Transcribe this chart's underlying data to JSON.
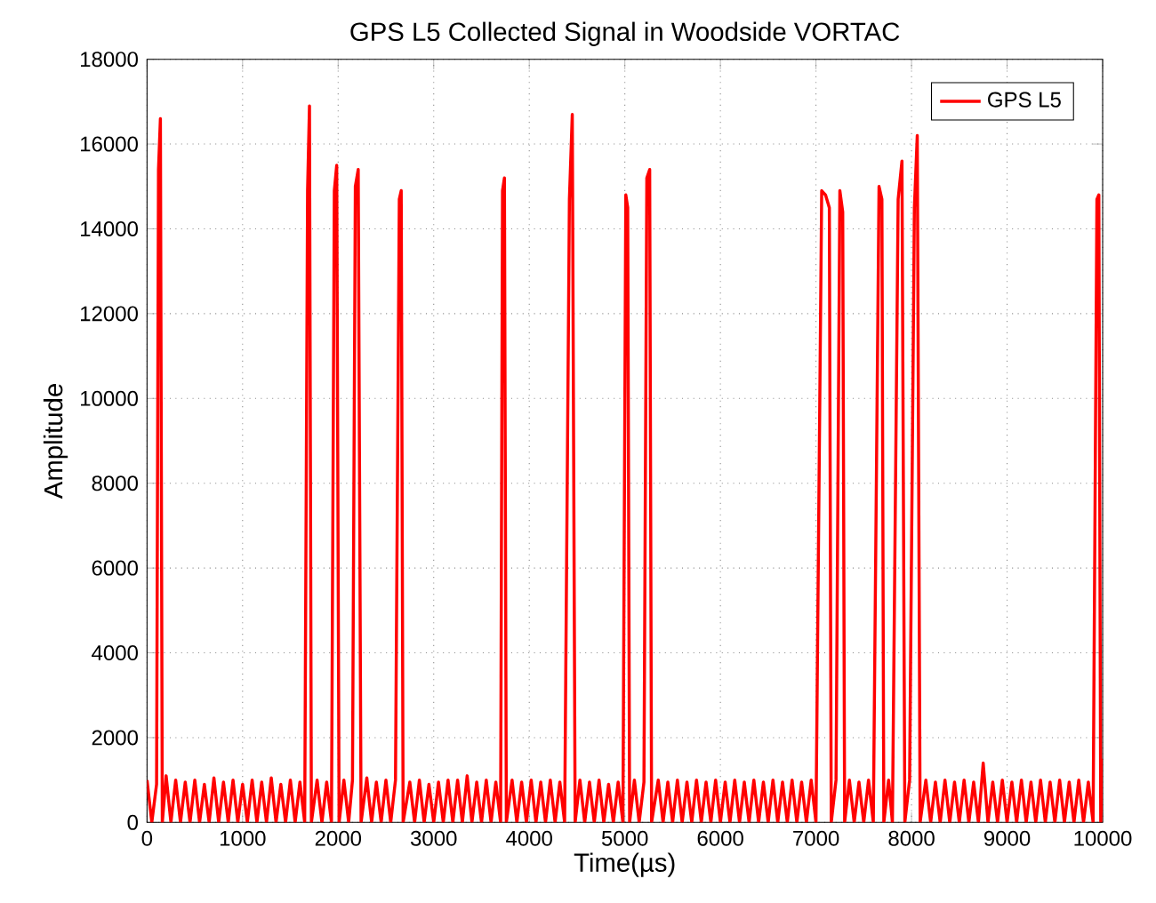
{
  "chart_data": {
    "type": "line",
    "title": "GPS L5 Collected Signal in Woodside VORTAC",
    "xlabel": "Time(µs)",
    "ylabel": "Amplitude",
    "xlim": [
      0,
      10000
    ],
    "ylim": [
      0,
      18000
    ],
    "xticks": [
      0,
      1000,
      2000,
      3000,
      4000,
      5000,
      6000,
      7000,
      8000,
      9000,
      10000
    ],
    "yticks": [
      0,
      2000,
      4000,
      6000,
      8000,
      10000,
      12000,
      14000,
      16000,
      18000
    ],
    "grid": true,
    "legend": "top right",
    "line_style": "solid",
    "series": [
      {
        "name": "GPS L5",
        "color": "#ff0000",
        "x": [
          0,
          50,
          100,
          120,
          140,
          160,
          200,
          250,
          300,
          350,
          400,
          450,
          500,
          550,
          600,
          650,
          700,
          750,
          800,
          850,
          900,
          950,
          1000,
          1050,
          1100,
          1150,
          1200,
          1250,
          1300,
          1350,
          1400,
          1450,
          1500,
          1550,
          1600,
          1650,
          1680,
          1700,
          1720,
          1780,
          1830,
          1880,
          1930,
          1960,
          1985,
          2010,
          2060,
          2110,
          2150,
          2180,
          2210,
          2240,
          2300,
          2350,
          2400,
          2450,
          2500,
          2550,
          2600,
          2640,
          2660,
          2680,
          2750,
          2800,
          2850,
          2900,
          2950,
          3000,
          3050,
          3100,
          3150,
          3200,
          3250,
          3300,
          3350,
          3400,
          3450,
          3500,
          3550,
          3600,
          3650,
          3700,
          3720,
          3740,
          3760,
          3820,
          3870,
          3920,
          3970,
          4020,
          4070,
          4120,
          4170,
          4220,
          4270,
          4320,
          4370,
          4420,
          4450,
          4480,
          4530,
          4580,
          4630,
          4680,
          4730,
          4780,
          4830,
          4880,
          4930,
          4980,
          5010,
          5030,
          5050,
          5100,
          5150,
          5200,
          5230,
          5260,
          5280,
          5350,
          5400,
          5450,
          5500,
          5550,
          5600,
          5650,
          5700,
          5750,
          5800,
          5850,
          5900,
          5950,
          6000,
          6050,
          6100,
          6150,
          6200,
          6250,
          6300,
          6350,
          6400,
          6450,
          6500,
          6550,
          6600,
          6650,
          6700,
          6750,
          6800,
          6850,
          6900,
          6950,
          7000,
          7060,
          7100,
          7140,
          7160,
          7210,
          7250,
          7280,
          7300,
          7350,
          7400,
          7450,
          7500,
          7550,
          7600,
          7660,
          7690,
          7710,
          7760,
          7800,
          7860,
          7900,
          7930,
          7980,
          8030,
          8060,
          8090,
          8150,
          8200,
          8250,
          8300,
          8350,
          8400,
          8450,
          8500,
          8550,
          8600,
          8650,
          8700,
          8750,
          8800,
          8850,
          8900,
          8950,
          9000,
          9050,
          9100,
          9150,
          9200,
          9250,
          9300,
          9350,
          9400,
          9450,
          9500,
          9550,
          9600,
          9650,
          9700,
          9750,
          9800,
          9850,
          9900,
          9940,
          9960,
          9980,
          10000
        ],
        "values": [
          1000,
          0,
          900,
          15400,
          16600,
          0,
          1100,
          0,
          1000,
          0,
          950,
          0,
          1000,
          0,
          900,
          0,
          1050,
          0,
          950,
          0,
          1000,
          0,
          900,
          0,
          1000,
          0,
          950,
          0,
          1050,
          0,
          900,
          0,
          1000,
          0,
          950,
          0,
          14900,
          16900,
          0,
          1000,
          0,
          950,
          0,
          14900,
          15500,
          0,
          1000,
          0,
          1000,
          15000,
          15400,
          0,
          1050,
          0,
          950,
          0,
          1000,
          0,
          1000,
          14700,
          14900,
          0,
          950,
          0,
          1000,
          0,
          900,
          0,
          950,
          0,
          1000,
          0,
          1000,
          0,
          1100,
          0,
          950,
          0,
          1000,
          0,
          950,
          0,
          14900,
          15200,
          0,
          1000,
          0,
          950,
          0,
          1000,
          0,
          950,
          0,
          1000,
          0,
          950,
          0,
          14700,
          16700,
          0,
          1000,
          0,
          950,
          0,
          1000,
          0,
          900,
          0,
          950,
          0,
          14800,
          14500,
          0,
          1000,
          0,
          950,
          15200,
          15400,
          0,
          1000,
          0,
          950,
          0,
          1000,
          0,
          950,
          0,
          1000,
          0,
          950,
          0,
          1000,
          0,
          950,
          0,
          1000,
          0,
          950,
          0,
          1000,
          0,
          950,
          0,
          1000,
          0,
          950,
          0,
          1000,
          0,
          950,
          0,
          1000,
          0,
          14900,
          14800,
          14500,
          0,
          1000,
          14900,
          14400,
          0,
          1000,
          0,
          950,
          0,
          1000,
          0,
          15000,
          14700,
          0,
          1000,
          0,
          14700,
          15600,
          0,
          1000,
          14500,
          16200,
          0,
          1000,
          0,
          950,
          0,
          1000,
          0,
          950,
          0,
          1000,
          0,
          950,
          0,
          1400,
          0,
          950,
          0,
          1000,
          0,
          950,
          0,
          1000,
          0,
          950,
          0,
          1000,
          0,
          950,
          0,
          1000,
          0,
          950,
          0,
          1000,
          0,
          950,
          0,
          14700,
          14800,
          0,
          1500
        ]
      }
    ]
  }
}
